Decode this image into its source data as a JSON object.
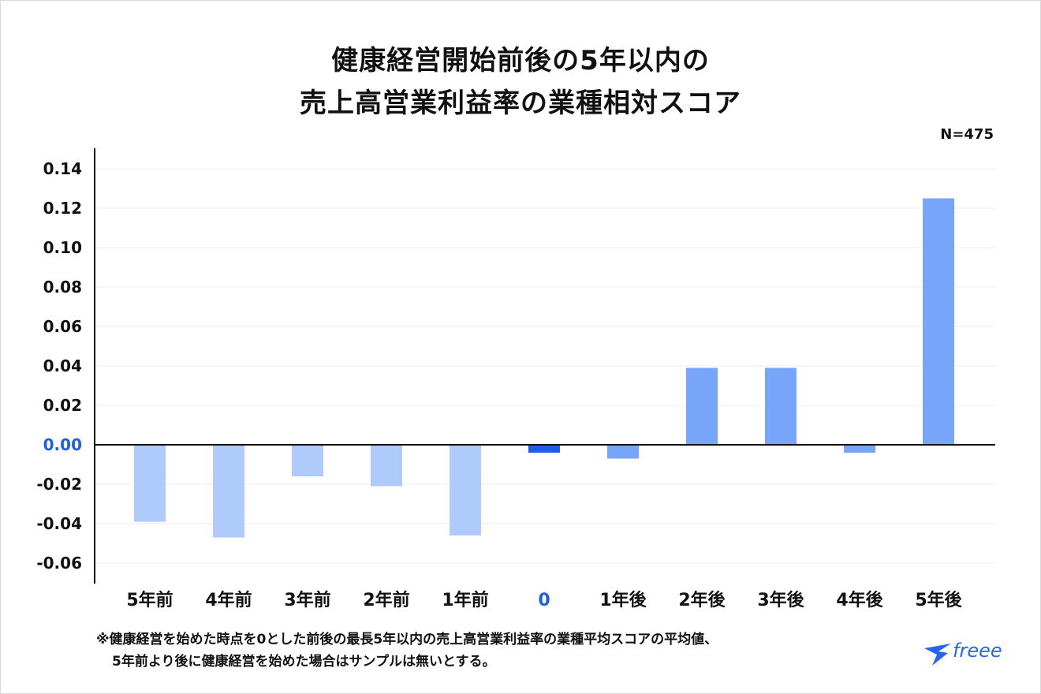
{
  "title": {
    "line1": "健康経営開始前後の5年以内の",
    "line2": "売上高営業利益率の業種相対スコア"
  },
  "sample_size": "N=475",
  "footnote": {
    "line1": "※健康経営を始めた時点を0とした前後の最長5年以内の売上高営業利益率の業種平均スコアの平均値、",
    "line2": "5年前より後に健康経営を始めた場合はサンプルは無いとする。"
  },
  "logo": {
    "text": "freee"
  },
  "colors": {
    "before": "#aecbfb",
    "zero": "#1a5fe6",
    "after": "#76a5fa",
    "axis_text": "#111111",
    "zero_tick": "#1a5fe6",
    "grid": "#eeeeee"
  },
  "chart_data": {
    "type": "bar",
    "title": "健康経営開始前後の5年以内の売上高営業利益率の業種相対スコア",
    "xlabel": "",
    "ylabel": "",
    "categories": [
      "5年前",
      "4年前",
      "3年前",
      "2年前",
      "1年前",
      "0",
      "1年後",
      "2年後",
      "3年後",
      "4年後",
      "5年後"
    ],
    "values": [
      -0.039,
      -0.047,
      -0.016,
      -0.021,
      -0.046,
      -0.004,
      -0.007,
      0.039,
      0.039,
      -0.004,
      0.125
    ],
    "ylim": [
      -0.07,
      0.15
    ],
    "yticks": [
      {
        "value": 0.14,
        "label": "0.14"
      },
      {
        "value": 0.12,
        "label": "0.12"
      },
      {
        "value": 0.1,
        "label": "0.10"
      },
      {
        "value": 0.08,
        "label": "0.08"
      },
      {
        "value": 0.06,
        "label": "0.06"
      },
      {
        "value": 0.04,
        "label": "0.04"
      },
      {
        "value": 0.02,
        "label": "0.02"
      },
      {
        "value": 0.0,
        "label": "0.00"
      },
      {
        "value": -0.02,
        "label": "-0.02"
      },
      {
        "value": -0.04,
        "label": "-0.04"
      },
      {
        "value": -0.06,
        "label": "-0.06"
      }
    ],
    "grid": true,
    "legend": "none"
  }
}
